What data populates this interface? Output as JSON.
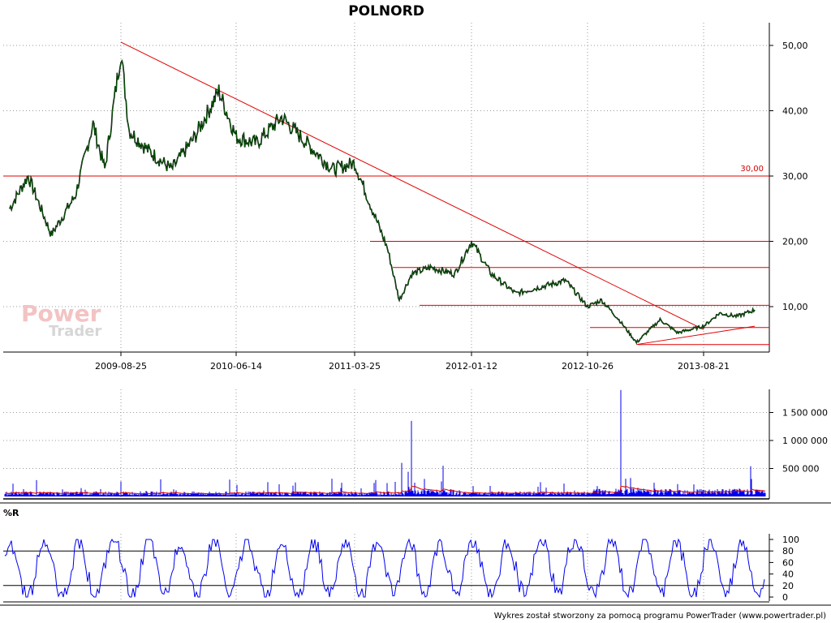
{
  "chart_data": [
    {
      "type": "line",
      "panel": "price",
      "title": "POLNORD",
      "x_ticks": [
        "2009-08-25",
        "2010-06-14",
        "2011-03-25",
        "2012-01-12",
        "2012-10-26",
        "2013-08-21"
      ],
      "y_ticks": [
        "10,00",
        "20,00",
        "30,00",
        "40,00",
        "50,00"
      ],
      "ylim": [
        3.5,
        52
      ],
      "grid": "dotted",
      "series": [
        {
          "color": "#006400",
          "x": [
            "2008-11-15",
            "2009-01-01",
            "2009-03-01",
            "2009-05-01",
            "2009-06-15",
            "2009-07-15",
            "2009-08-25",
            "2009-09-15",
            "2009-11-01",
            "2010-01-01",
            "2010-03-01",
            "2010-05-01",
            "2010-06-14",
            "2010-08-01",
            "2010-10-01",
            "2010-12-01",
            "2011-02-01",
            "2011-03-25",
            "2011-05-01",
            "2011-06-15",
            "2011-07-15",
            "2011-08-15",
            "2011-10-01",
            "2011-12-01",
            "2012-01-12",
            "2012-03-01",
            "2012-05-01",
            "2012-07-01",
            "2012-09-01",
            "2012-10-26",
            "2012-12-01",
            "2013-01-15",
            "2013-03-01",
            "2013-05-01",
            "2013-06-15",
            "2013-08-21",
            "2013-10-01",
            "2013-11-15",
            "2013-12-31"
          ],
          "values": [
            25,
            30,
            21,
            27,
            38,
            31,
            49,
            37,
            34,
            31,
            36,
            43,
            36,
            35,
            39,
            35,
            31,
            32,
            26,
            19,
            11,
            15,
            16,
            15,
            20,
            15,
            12,
            13,
            14,
            10,
            11,
            8,
            4.5,
            8,
            6,
            7,
            9,
            8.5,
            9.5
          ]
        }
      ],
      "annotations": [
        {
          "type": "horizontal_line",
          "value": 30,
          "label": "30,00",
          "color": "#e00000"
        },
        {
          "type": "horizontal_line",
          "value": 20,
          "color": "#e00000"
        },
        {
          "type": "horizontal_line",
          "value": 16,
          "color": "#e00000"
        },
        {
          "type": "horizontal_line",
          "value": 10.2,
          "color": "#e00000"
        },
        {
          "type": "horizontal_line",
          "value": 6.8,
          "color": "#e00000"
        },
        {
          "type": "horizontal_line",
          "value": 4.2,
          "color": "#e00000"
        },
        {
          "type": "trend_line",
          "from": [
            "2009-08-25",
            50.5
          ],
          "to": [
            "2013-08-21",
            6.5
          ],
          "color": "#e00000"
        },
        {
          "type": "trend_line",
          "from": [
            "2013-03-01",
            4.2
          ],
          "to": [
            "2013-12-31",
            7
          ],
          "color": "#e00000"
        }
      ]
    },
    {
      "type": "bar",
      "panel": "volume",
      "y_ticks": [
        "500 000",
        "1 000 000",
        "1 500 000"
      ],
      "ylim": [
        0,
        1900000
      ],
      "series": [
        {
          "color": "#0000ee",
          "peaks": [
            {
              "x": "2011-08-15",
              "value": 1350000
            },
            {
              "x": "2013-01-20",
              "value": 1900000
            },
            {
              "x": "2011-07-20",
              "value": 600000
            },
            {
              "x": "2013-12-20",
              "value": 540000
            }
          ],
          "typical_level": 60000
        }
      ],
      "average_line_color": "#e00000"
    },
    {
      "type": "line",
      "panel": "williams-r",
      "label": "%R",
      "y_ticks": [
        "0",
        "20",
        "40",
        "60",
        "80",
        "100"
      ],
      "ylim": [
        0,
        100
      ],
      "reference_lines": [
        20,
        80
      ],
      "series": [
        {
          "color": "#0000ee"
        }
      ]
    }
  ],
  "watermark": {
    "line1": "Power",
    "line2": "Trader"
  },
  "footer": {
    "credit": "Wykres został stworzony za pomocą programu PowerTrader (www.powertrader.pl)"
  }
}
